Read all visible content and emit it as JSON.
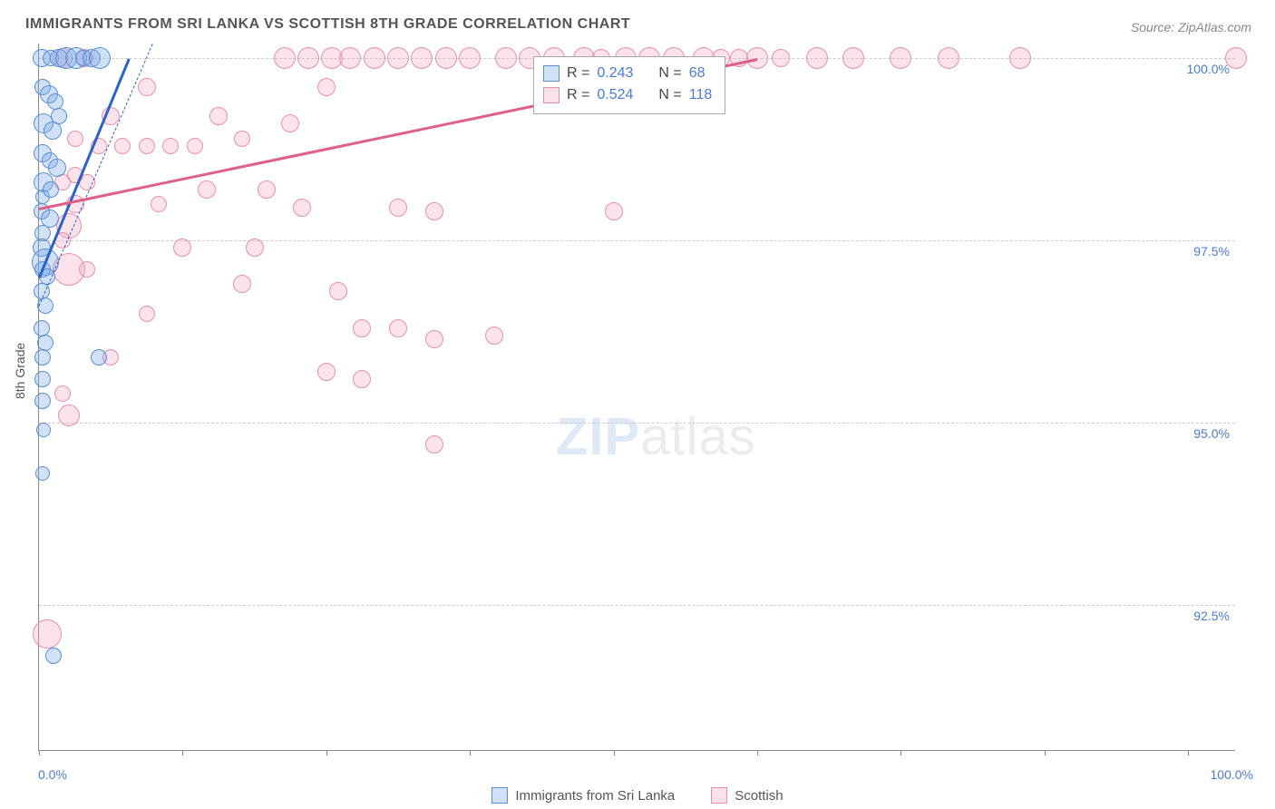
{
  "title": "IMMIGRANTS FROM SRI LANKA VS SCOTTISH 8TH GRADE CORRELATION CHART",
  "source_label": "Source:",
  "source_value": "ZipAtlas.com",
  "yaxis_label": "8th Grade",
  "watermark": {
    "part1": "ZIP",
    "part2": "atlas"
  },
  "chart": {
    "type": "scatter",
    "background_color": "#ffffff",
    "grid_color": "#cccccc",
    "axis_color": "#888888",
    "tick_label_color": "#4a7bd8",
    "xlim": [
      0,
      100
    ],
    "ylim": [
      90.5,
      100.2
    ],
    "ytick_step": 2.5,
    "yticks": [
      {
        "value": 92.5,
        "label": "92.5%"
      },
      {
        "value": 95.0,
        "label": "95.0%"
      },
      {
        "value": 97.5,
        "label": "97.5%"
      },
      {
        "value": 100.0,
        "label": "100.0%"
      }
    ],
    "xticks_major": [
      0,
      12,
      24,
      36,
      48,
      60,
      72,
      84,
      96
    ],
    "xtick_labels": [
      {
        "value": 0,
        "label": "0.0%"
      },
      {
        "value": 100,
        "label": "100.0%"
      }
    ],
    "series": [
      {
        "name": "Immigrants from Sri Lanka",
        "marker_fill": "rgba(120,170,235,0.35)",
        "marker_stroke": "#5a8fd6",
        "trend_color": "#2b62c9",
        "stats": {
          "R": "0.243",
          "N": "68"
        },
        "trend": {
          "x0": 0,
          "y0": 97.0,
          "x1": 7.5,
          "y1": 100.0
        },
        "trend_dash": {
          "x0": 0,
          "y0": 96.6,
          "x1": 9.5,
          "y1": 100.2
        },
        "points": [
          {
            "x": 0.2,
            "y": 100.0,
            "r": 10
          },
          {
            "x": 1.0,
            "y": 100.0,
            "r": 9
          },
          {
            "x": 1.7,
            "y": 100.0,
            "r": 10
          },
          {
            "x": 2.3,
            "y": 100.0,
            "r": 12
          },
          {
            "x": 3.1,
            "y": 100.0,
            "r": 12
          },
          {
            "x": 3.7,
            "y": 100.0,
            "r": 9
          },
          {
            "x": 4.4,
            "y": 100.0,
            "r": 10
          },
          {
            "x": 5.1,
            "y": 100.0,
            "r": 12
          },
          {
            "x": 0.3,
            "y": 99.6,
            "r": 9
          },
          {
            "x": 0.8,
            "y": 99.5,
            "r": 10
          },
          {
            "x": 1.4,
            "y": 99.4,
            "r": 9
          },
          {
            "x": 0.4,
            "y": 99.1,
            "r": 11
          },
          {
            "x": 1.1,
            "y": 99.0,
            "r": 10
          },
          {
            "x": 1.7,
            "y": 99.2,
            "r": 9
          },
          {
            "x": 0.3,
            "y": 98.7,
            "r": 10
          },
          {
            "x": 0.9,
            "y": 98.6,
            "r": 9
          },
          {
            "x": 1.5,
            "y": 98.5,
            "r": 10
          },
          {
            "x": 0.4,
            "y": 98.3,
            "r": 11
          },
          {
            "x": 0.3,
            "y": 98.1,
            "r": 8
          },
          {
            "x": 1.0,
            "y": 98.2,
            "r": 9
          },
          {
            "x": 0.2,
            "y": 97.9,
            "r": 9
          },
          {
            "x": 0.9,
            "y": 97.8,
            "r": 10
          },
          {
            "x": 0.3,
            "y": 97.6,
            "r": 9
          },
          {
            "x": 0.2,
            "y": 97.4,
            "r": 10
          },
          {
            "x": 0.5,
            "y": 97.2,
            "r": 15
          },
          {
            "x": 0.3,
            "y": 97.1,
            "r": 9
          },
          {
            "x": 0.7,
            "y": 97.0,
            "r": 9
          },
          {
            "x": 0.2,
            "y": 96.8,
            "r": 9
          },
          {
            "x": 0.5,
            "y": 96.6,
            "r": 9
          },
          {
            "x": 0.2,
            "y": 96.3,
            "r": 9
          },
          {
            "x": 0.5,
            "y": 96.1,
            "r": 9
          },
          {
            "x": 0.3,
            "y": 95.9,
            "r": 9
          },
          {
            "x": 5.0,
            "y": 95.9,
            "r": 9
          },
          {
            "x": 0.3,
            "y": 95.6,
            "r": 9
          },
          {
            "x": 0.3,
            "y": 95.3,
            "r": 9
          },
          {
            "x": 0.4,
            "y": 94.9,
            "r": 8
          },
          {
            "x": 0.3,
            "y": 94.3,
            "r": 8
          },
          {
            "x": 1.2,
            "y": 91.8,
            "r": 9
          }
        ]
      },
      {
        "name": "Scottish",
        "marker_fill": "rgba(244,160,190,0.30)",
        "marker_stroke": "#e98fb0",
        "trend_color": "#e05f8a",
        "stats": {
          "R": "0.524",
          "N": "118"
        },
        "trend": {
          "x0": 0,
          "y0": 97.95,
          "x1": 60,
          "y1": 100.0
        },
        "points": [
          {
            "x": 2,
            "y": 100.0,
            "r": 11
          },
          {
            "x": 3.8,
            "y": 100.0,
            "r": 10
          },
          {
            "x": 20.5,
            "y": 100.0,
            "r": 12
          },
          {
            "x": 22.5,
            "y": 100.0,
            "r": 12
          },
          {
            "x": 24.5,
            "y": 100.0,
            "r": 12
          },
          {
            "x": 26,
            "y": 100.0,
            "r": 12
          },
          {
            "x": 28,
            "y": 100.0,
            "r": 12
          },
          {
            "x": 30,
            "y": 100.0,
            "r": 12
          },
          {
            "x": 32,
            "y": 100.0,
            "r": 12
          },
          {
            "x": 34,
            "y": 100.0,
            "r": 12
          },
          {
            "x": 36,
            "y": 100.0,
            "r": 12
          },
          {
            "x": 39,
            "y": 100.0,
            "r": 12
          },
          {
            "x": 41,
            "y": 100.0,
            "r": 12
          },
          {
            "x": 43,
            "y": 100.0,
            "r": 12
          },
          {
            "x": 45.5,
            "y": 100.0,
            "r": 12
          },
          {
            "x": 47,
            "y": 100.0,
            "r": 10
          },
          {
            "x": 49,
            "y": 100.0,
            "r": 12
          },
          {
            "x": 51,
            "y": 100.0,
            "r": 12
          },
          {
            "x": 53,
            "y": 100.0,
            "r": 12
          },
          {
            "x": 55.5,
            "y": 100.0,
            "r": 12
          },
          {
            "x": 57,
            "y": 100.0,
            "r": 10
          },
          {
            "x": 58.5,
            "y": 100.0,
            "r": 10
          },
          {
            "x": 60,
            "y": 100.0,
            "r": 12
          },
          {
            "x": 62,
            "y": 100.0,
            "r": 10
          },
          {
            "x": 65,
            "y": 100.0,
            "r": 12
          },
          {
            "x": 68,
            "y": 100.0,
            "r": 12
          },
          {
            "x": 72,
            "y": 100.0,
            "r": 12
          },
          {
            "x": 76,
            "y": 100.0,
            "r": 12
          },
          {
            "x": 82,
            "y": 100.0,
            "r": 12
          },
          {
            "x": 100,
            "y": 100.0,
            "r": 12
          },
          {
            "x": 9,
            "y": 99.6,
            "r": 10
          },
          {
            "x": 24,
            "y": 99.6,
            "r": 10
          },
          {
            "x": 6,
            "y": 99.2,
            "r": 10
          },
          {
            "x": 15,
            "y": 99.2,
            "r": 10
          },
          {
            "x": 21,
            "y": 99.1,
            "r": 10
          },
          {
            "x": 3,
            "y": 98.9,
            "r": 9
          },
          {
            "x": 5,
            "y": 98.8,
            "r": 9
          },
          {
            "x": 7,
            "y": 98.8,
            "r": 9
          },
          {
            "x": 9,
            "y": 98.8,
            "r": 9
          },
          {
            "x": 11,
            "y": 98.8,
            "r": 9
          },
          {
            "x": 13,
            "y": 98.8,
            "r": 9
          },
          {
            "x": 17,
            "y": 98.9,
            "r": 9
          },
          {
            "x": 3,
            "y": 98.4,
            "r": 9
          },
          {
            "x": 2,
            "y": 98.3,
            "r": 9
          },
          {
            "x": 4,
            "y": 98.3,
            "r": 9
          },
          {
            "x": 14,
            "y": 98.2,
            "r": 10
          },
          {
            "x": 19,
            "y": 98.2,
            "r": 10
          },
          {
            "x": 10,
            "y": 98.0,
            "r": 9
          },
          {
            "x": 3,
            "y": 98.0,
            "r": 10
          },
          {
            "x": 22,
            "y": 97.95,
            "r": 10
          },
          {
            "x": 30,
            "y": 97.95,
            "r": 10
          },
          {
            "x": 33,
            "y": 97.9,
            "r": 10
          },
          {
            "x": 48,
            "y": 97.9,
            "r": 10
          },
          {
            "x": 2.5,
            "y": 97.7,
            "r": 14
          },
          {
            "x": 2,
            "y": 97.5,
            "r": 9
          },
          {
            "x": 2.5,
            "y": 97.1,
            "r": 18
          },
          {
            "x": 4,
            "y": 97.1,
            "r": 9
          },
          {
            "x": 12,
            "y": 97.4,
            "r": 10
          },
          {
            "x": 18,
            "y": 97.4,
            "r": 10
          },
          {
            "x": 17,
            "y": 96.9,
            "r": 10
          },
          {
            "x": 25,
            "y": 96.8,
            "r": 10
          },
          {
            "x": 9,
            "y": 96.5,
            "r": 9
          },
          {
            "x": 27,
            "y": 96.3,
            "r": 10
          },
          {
            "x": 30,
            "y": 96.3,
            "r": 10
          },
          {
            "x": 33,
            "y": 96.15,
            "r": 10
          },
          {
            "x": 38,
            "y": 96.2,
            "r": 10
          },
          {
            "x": 6,
            "y": 95.9,
            "r": 9
          },
          {
            "x": 24,
            "y": 95.7,
            "r": 10
          },
          {
            "x": 27,
            "y": 95.6,
            "r": 10
          },
          {
            "x": 2,
            "y": 95.4,
            "r": 9
          },
          {
            "x": 2.5,
            "y": 95.1,
            "r": 12
          },
          {
            "x": 33,
            "y": 94.7,
            "r": 10
          },
          {
            "x": 0.7,
            "y": 92.1,
            "r": 16
          }
        ]
      }
    ]
  },
  "legend": {
    "stats_labels": {
      "R": "R =",
      "N": "N ="
    },
    "bottom_items": [
      {
        "series_index": 0
      },
      {
        "series_index": 1
      }
    ]
  }
}
